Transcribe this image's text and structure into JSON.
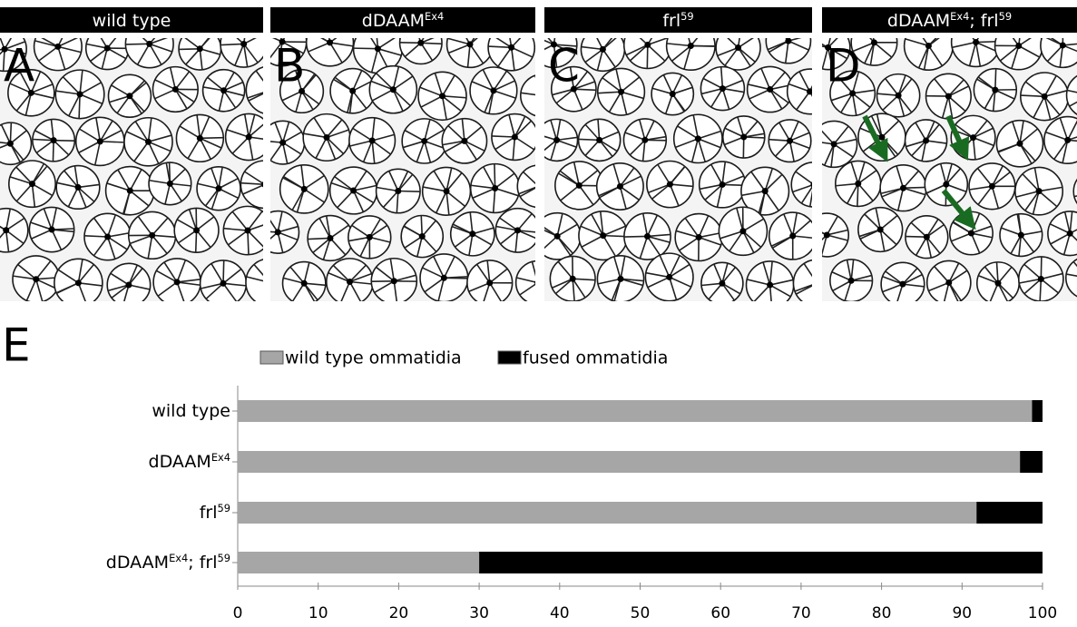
{
  "panels": [
    {
      "letter": "A",
      "title": [
        {
          "t": "wild type"
        }
      ]
    },
    {
      "letter": "B",
      "title": [
        {
          "t": "dDAAM"
        },
        {
          "t": "Ex4",
          "sup": true
        }
      ]
    },
    {
      "letter": "C",
      "title": [
        {
          "t": "frl"
        },
        {
          "t": "59",
          "sup": true
        }
      ]
    },
    {
      "letter": "D",
      "title": [
        {
          "t": "dDAAM"
        },
        {
          "t": "Ex4",
          "sup": true
        },
        {
          "t": "; frl"
        },
        {
          "t": "59",
          "sup": true
        }
      ]
    }
  ],
  "chart_data": {
    "type": "stacked-hbar",
    "panel_label": "E",
    "categories": [
      [
        {
          "t": "wild type"
        }
      ],
      [
        {
          "t": "dDAAM"
        },
        {
          "t": "Ex4",
          "sup": true
        }
      ],
      [
        {
          "t": "frl"
        },
        {
          "t": "59",
          "sup": true
        }
      ],
      [
        {
          "t": "dDAAM"
        },
        {
          "t": "Ex4",
          "sup": true
        },
        {
          "t": "; frl"
        },
        {
          "t": "59",
          "sup": true
        }
      ]
    ],
    "series": [
      {
        "name": "wild type ommatidia",
        "color": "#a6a6a6",
        "values": [
          98.7,
          97.2,
          91.8,
          30
        ]
      },
      {
        "name": "fused ommatidia",
        "color": "#000000",
        "values": [
          1.3,
          2.8,
          8.2,
          70
        ]
      }
    ],
    "xlim": [
      0,
      100
    ],
    "xticks": [
      0,
      10,
      20,
      30,
      40,
      50,
      60,
      70,
      80,
      90,
      100
    ]
  }
}
